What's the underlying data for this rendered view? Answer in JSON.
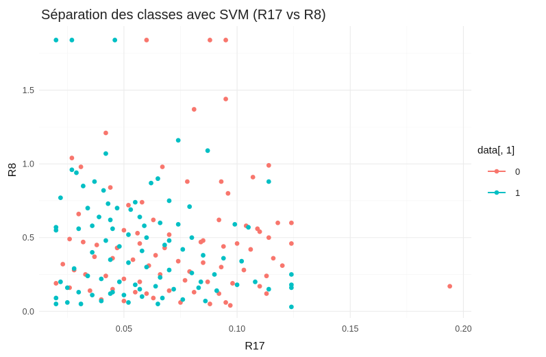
{
  "chart_data": {
    "type": "scatter",
    "title": "Séparation des classes avec SVM (R17 vs R8)",
    "xlabel": "R17",
    "ylabel": "R8",
    "xlim": [
      0.0125,
      0.2035
    ],
    "ylim": [
      -0.045,
      1.935
    ],
    "x_ticks": [
      0.05,
      0.1,
      0.15,
      0.2
    ],
    "x_tick_labels": [
      "0.05",
      "0.10",
      "0.15",
      "0.20"
    ],
    "y_ticks": [
      0.0,
      0.5,
      1.0,
      1.5
    ],
    "y_tick_labels": [
      "0.0",
      "0.5",
      "1.0",
      "1.5"
    ],
    "grid": true,
    "legend": {
      "title": "data[, 1]",
      "position": "right"
    },
    "colors": {
      "0": "#F8766D",
      "1": "#00BFC4"
    },
    "series": [
      {
        "name": "0",
        "color": "#F8766D",
        "points": [
          [
            0.06,
            1.84
          ],
          [
            0.088,
            1.84
          ],
          [
            0.095,
            1.84
          ],
          [
            0.042,
            1.21
          ],
          [
            0.081,
            1.37
          ],
          [
            0.095,
            1.44
          ],
          [
            0.114,
            0.99
          ],
          [
            0.107,
            0.91
          ],
          [
            0.027,
            1.04
          ],
          [
            0.031,
            0.98
          ],
          [
            0.044,
            0.84
          ],
          [
            0.067,
            0.98
          ],
          [
            0.078,
            0.88
          ],
          [
            0.093,
            0.88
          ],
          [
            0.096,
            0.8
          ],
          [
            0.058,
            0.74
          ],
          [
            0.052,
            0.72
          ],
          [
            0.063,
            0.62
          ],
          [
            0.092,
            0.62
          ],
          [
            0.109,
            0.56
          ],
          [
            0.118,
            0.6
          ],
          [
            0.124,
            0.6
          ],
          [
            0.05,
            0.55
          ],
          [
            0.104,
            0.58
          ],
          [
            0.124,
            0.46
          ],
          [
            0.114,
            0.5
          ],
          [
            0.11,
            0.54
          ],
          [
            0.085,
            0.48
          ],
          [
            0.032,
            0.47
          ],
          [
            0.026,
            0.49
          ],
          [
            0.038,
            0.45
          ],
          [
            0.047,
            0.43
          ],
          [
            0.057,
            0.46
          ],
          [
            0.07,
            0.52
          ],
          [
            0.084,
            0.47
          ],
          [
            0.094,
            0.44
          ],
          [
            0.1,
            0.46
          ],
          [
            0.106,
            0.42
          ],
          [
            0.116,
            0.36
          ],
          [
            0.12,
            0.31
          ],
          [
            0.037,
            0.37
          ],
          [
            0.045,
            0.36
          ],
          [
            0.054,
            0.35
          ],
          [
            0.064,
            0.38
          ],
          [
            0.074,
            0.34
          ],
          [
            0.085,
            0.33
          ],
          [
            0.093,
            0.3
          ],
          [
            0.103,
            0.28
          ],
          [
            0.113,
            0.24
          ],
          [
            0.023,
            0.32
          ],
          [
            0.028,
            0.28
          ],
          [
            0.033,
            0.25
          ],
          [
            0.042,
            0.24
          ],
          [
            0.05,
            0.22
          ],
          [
            0.057,
            0.2
          ],
          [
            0.066,
            0.25
          ],
          [
            0.077,
            0.21
          ],
          [
            0.087,
            0.2
          ],
          [
            0.098,
            0.19
          ],
          [
            0.11,
            0.17
          ],
          [
            0.02,
            0.19
          ],
          [
            0.026,
            0.16
          ],
          [
            0.035,
            0.14
          ],
          [
            0.045,
            0.15
          ],
          [
            0.055,
            0.13
          ],
          [
            0.06,
            0.12
          ],
          [
            0.07,
            0.14
          ],
          [
            0.081,
            0.13
          ],
          [
            0.092,
            0.12
          ],
          [
            0.113,
            0.12
          ],
          [
            0.04,
            0.08
          ],
          [
            0.05,
            0.07
          ],
          [
            0.063,
            0.09
          ],
          [
            0.075,
            0.06
          ],
          [
            0.088,
            0.05
          ],
          [
            0.095,
            0.06
          ],
          [
            0.097,
            0.04
          ],
          [
            0.194,
            0.17
          ],
          [
            0.03,
            0.66
          ],
          [
            0.056,
            0.53
          ],
          [
            0.068,
            0.43
          ],
          [
            0.079,
            0.27
          ],
          [
            0.061,
            0.31
          ]
        ]
      },
      {
        "name": "1",
        "color": "#00BFC4",
        "points": [
          [
            0.02,
            1.84
          ],
          [
            0.027,
            1.84
          ],
          [
            0.046,
            1.84
          ],
          [
            0.074,
            1.16
          ],
          [
            0.087,
            1.09
          ],
          [
            0.042,
            1.07
          ],
          [
            0.027,
            0.96
          ],
          [
            0.029,
            0.94
          ],
          [
            0.037,
            0.88
          ],
          [
            0.041,
            0.82
          ],
          [
            0.062,
            0.87
          ],
          [
            0.065,
            0.9
          ],
          [
            0.07,
            0.75
          ],
          [
            0.079,
            0.71
          ],
          [
            0.055,
            0.74
          ],
          [
            0.043,
            0.73
          ],
          [
            0.047,
            0.7
          ],
          [
            0.053,
            0.69
          ],
          [
            0.032,
            0.85
          ],
          [
            0.022,
            0.77
          ],
          [
            0.034,
            0.7
          ],
          [
            0.039,
            0.64
          ],
          [
            0.044,
            0.62
          ],
          [
            0.057,
            0.64
          ],
          [
            0.066,
            0.6
          ],
          [
            0.074,
            0.59
          ],
          [
            0.02,
            0.57
          ],
          [
            0.02,
            0.55
          ],
          [
            0.03,
            0.56
          ],
          [
            0.036,
            0.58
          ],
          [
            0.045,
            0.56
          ],
          [
            0.052,
            0.52
          ],
          [
            0.06,
            0.5
          ],
          [
            0.07,
            0.48
          ],
          [
            0.08,
            0.5
          ],
          [
            0.099,
            0.59
          ],
          [
            0.105,
            0.57
          ],
          [
            0.114,
            0.88
          ],
          [
            0.042,
            0.48
          ],
          [
            0.048,
            0.44
          ],
          [
            0.058,
            0.41
          ],
          [
            0.068,
            0.45
          ],
          [
            0.076,
            0.42
          ],
          [
            0.085,
            0.38
          ],
          [
            0.094,
            0.36
          ],
          [
            0.102,
            0.34
          ],
          [
            0.036,
            0.4
          ],
          [
            0.044,
            0.35
          ],
          [
            0.052,
            0.33
          ],
          [
            0.06,
            0.3
          ],
          [
            0.07,
            0.28
          ],
          [
            0.08,
            0.26
          ],
          [
            0.09,
            0.25
          ],
          [
            0.028,
            0.29
          ],
          [
            0.034,
            0.24
          ],
          [
            0.04,
            0.22
          ],
          [
            0.048,
            0.2
          ],
          [
            0.055,
            0.18
          ],
          [
            0.064,
            0.17
          ],
          [
            0.072,
            0.15
          ],
          [
            0.083,
            0.16
          ],
          [
            0.091,
            0.14
          ],
          [
            0.1,
            0.18
          ],
          [
            0.108,
            0.2
          ],
          [
            0.124,
            0.25
          ],
          [
            0.124,
            0.18
          ],
          [
            0.124,
            0.16
          ],
          [
            0.114,
            0.15
          ],
          [
            0.022,
            0.2
          ],
          [
            0.025,
            0.16
          ],
          [
            0.03,
            0.13
          ],
          [
            0.036,
            0.11
          ],
          [
            0.044,
            0.12
          ],
          [
            0.05,
            0.11
          ],
          [
            0.058,
            0.1
          ],
          [
            0.067,
            0.09
          ],
          [
            0.076,
            0.08
          ],
          [
            0.086,
            0.07
          ],
          [
            0.02,
            0.09
          ],
          [
            0.02,
            0.05
          ],
          [
            0.025,
            0.06
          ],
          [
            0.031,
            0.05
          ],
          [
            0.04,
            0.07
          ],
          [
            0.052,
            0.06
          ],
          [
            0.065,
            0.05
          ],
          [
            0.124,
            0.03
          ],
          [
            0.045,
            0.13
          ],
          [
            0.057,
            0.15
          ],
          [
            0.066,
            0.23
          ],
          [
            0.084,
            0.2
          ],
          [
            0.059,
            0.58
          ]
        ]
      }
    ]
  }
}
